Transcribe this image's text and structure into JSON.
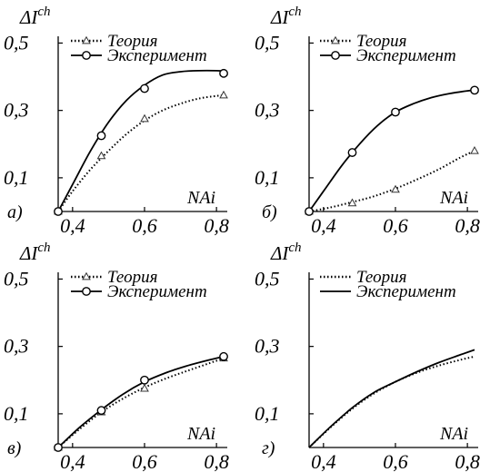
{
  "chart_data": [
    {
      "type": "line",
      "panel_label": "а)",
      "ylabel_main": "ΔI",
      "ylabel_sup": "ch",
      "xlabel": "NAi",
      "xlim": [
        0.36,
        0.83
      ],
      "ylim": [
        0,
        0.52
      ],
      "xticks": [
        0.4,
        0.6,
        0.8
      ],
      "xtick_labels": [
        "0,4",
        "0,6",
        "0,8"
      ],
      "yticks": [
        0.1,
        0.3,
        0.5
      ],
      "ytick_labels": [
        "0,1",
        "0,3",
        "0,5"
      ],
      "legend_position": "top",
      "series": [
        {
          "name": "Теория",
          "style": "dotted",
          "marker": "triangle",
          "x": [
            0.36,
            0.48,
            0.6,
            0.82
          ],
          "y": [
            0.0,
            0.165,
            0.275,
            0.345
          ],
          "curve": {
            "x": [
              0.36,
              0.4,
              0.45,
              0.5,
              0.55,
              0.6,
              0.65,
              0.7,
              0.75,
              0.8,
              0.82
            ],
            "y": [
              0.0,
              0.06,
              0.125,
              0.18,
              0.23,
              0.27,
              0.3,
              0.32,
              0.335,
              0.343,
              0.345
            ]
          }
        },
        {
          "name": "Эксперимент",
          "style": "solid",
          "marker": "circle",
          "x": [
            0.36,
            0.48,
            0.6,
            0.82
          ],
          "y": [
            0.0,
            0.225,
            0.365,
            0.41
          ],
          "curve": {
            "x": [
              0.36,
              0.4,
              0.45,
              0.5,
              0.55,
              0.6,
              0.65,
              0.7,
              0.75,
              0.8,
              0.82
            ],
            "y": [
              0.0,
              0.08,
              0.18,
              0.265,
              0.33,
              0.375,
              0.405,
              0.415,
              0.418,
              0.418,
              0.417
            ]
          }
        }
      ]
    },
    {
      "type": "line",
      "panel_label": "б)",
      "ylabel_main": "ΔI",
      "ylabel_sup": "ch",
      "xlabel": "NAi",
      "xlim": [
        0.36,
        0.83
      ],
      "ylim": [
        0,
        0.52
      ],
      "xticks": [
        0.4,
        0.6,
        0.8
      ],
      "xtick_labels": [
        "0,4",
        "0,6",
        "0,8"
      ],
      "yticks": [
        0.1,
        0.3,
        0.5
      ],
      "ytick_labels": [
        "0,1",
        "0,3",
        "0,5"
      ],
      "legend_position": "top",
      "series": [
        {
          "name": "Теория",
          "style": "dotted",
          "marker": "triangle",
          "x": [
            0.36,
            0.48,
            0.6,
            0.82
          ],
          "y": [
            0.0,
            0.025,
            0.065,
            0.18
          ],
          "curve": {
            "x": [
              0.36,
              0.42,
              0.48,
              0.54,
              0.6,
              0.66,
              0.72,
              0.78,
              0.82
            ],
            "y": [
              0.0,
              0.012,
              0.028,
              0.045,
              0.068,
              0.095,
              0.125,
              0.16,
              0.18
            ]
          }
        },
        {
          "name": "Эксперимент",
          "style": "solid",
          "marker": "circle",
          "x": [
            0.36,
            0.48,
            0.6,
            0.82
          ],
          "y": [
            0.0,
            0.175,
            0.295,
            0.36
          ],
          "curve": {
            "x": [
              0.36,
              0.4,
              0.45,
              0.5,
              0.55,
              0.6,
              0.65,
              0.7,
              0.75,
              0.8,
              0.82
            ],
            "y": [
              0.0,
              0.06,
              0.135,
              0.2,
              0.255,
              0.295,
              0.32,
              0.338,
              0.35,
              0.358,
              0.36
            ]
          }
        }
      ]
    },
    {
      "type": "line",
      "panel_label": "в)",
      "ylabel_main": "ΔI",
      "ylabel_sup": "ch",
      "xlabel": "NAi",
      "xlim": [
        0.36,
        0.83
      ],
      "ylim": [
        0,
        0.52
      ],
      "xticks": [
        0.4,
        0.6,
        0.8
      ],
      "xtick_labels": [
        "0,4",
        "0,6",
        "0,8"
      ],
      "yticks": [
        0.1,
        0.3,
        0.5
      ],
      "ytick_labels": [
        "0,1",
        "0,3",
        "0,5"
      ],
      "legend_position": "top",
      "series": [
        {
          "name": "Теория",
          "style": "dotted",
          "marker": "triangle",
          "x": [
            0.36,
            0.48,
            0.6,
            0.82
          ],
          "y": [
            0.0,
            0.105,
            0.175,
            0.265
          ],
          "curve": {
            "x": [
              0.36,
              0.42,
              0.48,
              0.54,
              0.6,
              0.66,
              0.72,
              0.78,
              0.82
            ],
            "y": [
              0.0,
              0.055,
              0.105,
              0.145,
              0.178,
              0.205,
              0.228,
              0.25,
              0.265
            ]
          }
        },
        {
          "name": "Эксперимент",
          "style": "solid",
          "marker": "circle",
          "x": [
            0.36,
            0.48,
            0.6,
            0.82
          ],
          "y": [
            0.0,
            0.11,
            0.2,
            0.27
          ],
          "curve": {
            "x": [
              0.36,
              0.42,
              0.48,
              0.54,
              0.6,
              0.66,
              0.72,
              0.78,
              0.82
            ],
            "y": [
              0.0,
              0.06,
              0.112,
              0.158,
              0.195,
              0.222,
              0.243,
              0.26,
              0.27
            ]
          }
        }
      ]
    },
    {
      "type": "line",
      "panel_label": "г)",
      "ylabel_main": "ΔI",
      "ylabel_sup": "ch",
      "xlabel": "NAi",
      "xlim": [
        0.36,
        0.83
      ],
      "ylim": [
        0,
        0.52
      ],
      "xticks": [
        0.4,
        0.6,
        0.8
      ],
      "xtick_labels": [
        "0,4",
        "0,6",
        "0,8"
      ],
      "yticks": [
        0.1,
        0.3,
        0.5
      ],
      "ytick_labels": [
        "0,1",
        "0,3",
        "0,5"
      ],
      "legend_position": "top",
      "series": [
        {
          "name": "Теория",
          "style": "dotted",
          "marker": "none",
          "curve": {
            "x": [
              0.36,
              0.42,
              0.48,
              0.54,
              0.6,
              0.66,
              0.72,
              0.78,
              0.82
            ],
            "y": [
              0.0,
              0.06,
              0.115,
              0.16,
              0.195,
              0.222,
              0.243,
              0.26,
              0.27
            ]
          }
        },
        {
          "name": "Эксперимент",
          "style": "solid",
          "marker": "none",
          "curve": {
            "x": [
              0.36,
              0.42,
              0.48,
              0.54,
              0.6,
              0.66,
              0.72,
              0.78,
              0.82
            ],
            "y": [
              0.0,
              0.062,
              0.118,
              0.163,
              0.195,
              0.225,
              0.252,
              0.275,
              0.29
            ]
          }
        }
      ]
    }
  ]
}
